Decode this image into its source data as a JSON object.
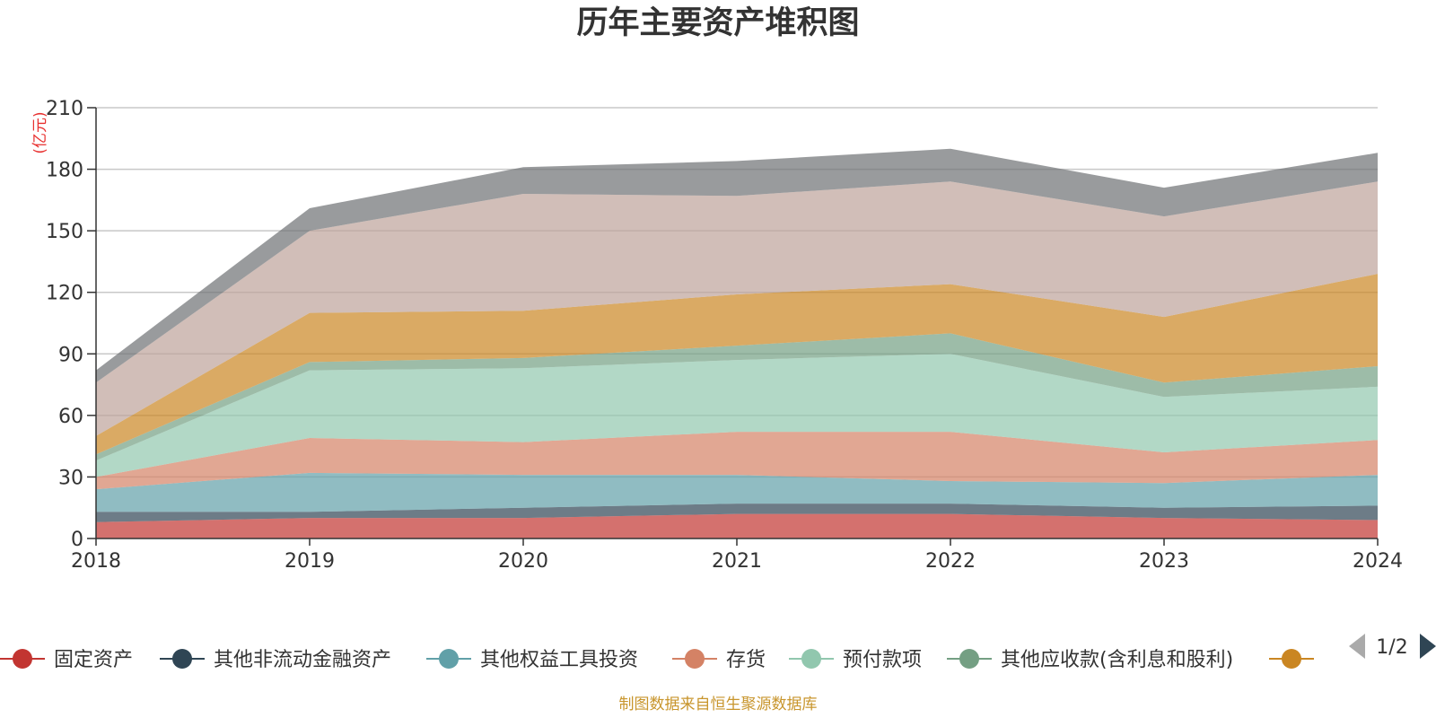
{
  "chart_data": {
    "type": "area",
    "stacked": true,
    "title": "历年主要资产堆积图",
    "unit_label": "(亿元)",
    "x": [
      "2018",
      "2019",
      "2020",
      "2021",
      "2022",
      "2023",
      "2024"
    ],
    "y_ticks": [
      "0",
      "30",
      "60",
      "90",
      "120",
      "150",
      "180",
      "210"
    ],
    "ylim": [
      0,
      210
    ],
    "grid": true,
    "series": [
      {
        "name": "固定资产",
        "color": "#c23531",
        "values": [
          8,
          10,
          10,
          12,
          12,
          10,
          9
        ]
      },
      {
        "name": "其他非流动金融资产",
        "color": "#2f4554",
        "values": [
          5,
          3,
          5,
          5,
          5,
          5,
          7
        ]
      },
      {
        "name": "其他权益工具投资",
        "color": "#61a0a8",
        "values": [
          11,
          19,
          16,
          14,
          11,
          12,
          15
        ]
      },
      {
        "name": "存货",
        "color": "#d48265",
        "values": [
          6,
          17,
          16,
          21,
          24,
          15,
          17
        ]
      },
      {
        "name": "预付款项",
        "color": "#91c7ae",
        "values": [
          8,
          33,
          36,
          35,
          38,
          27,
          26
        ]
      },
      {
        "name": "其他应收款(含利息和股利)",
        "color": "#749f83",
        "values": [
          3,
          4,
          5,
          7,
          10,
          7,
          10
        ]
      },
      {
        "name": "",
        "color": "#ca8622",
        "values": [
          9,
          24,
          23,
          25,
          24,
          32,
          45
        ]
      },
      {
        "name": "",
        "color": "#bda29a",
        "values": [
          26,
          40,
          57,
          48,
          50,
          49,
          45
        ]
      },
      {
        "name": "",
        "color": "#6e7074",
        "values": [
          6,
          11,
          13,
          17,
          16,
          14,
          14
        ]
      }
    ],
    "legend_placement": "bottom",
    "legend_page": "1/2",
    "source_note": "制图数据来自恒生聚源数据库"
  }
}
